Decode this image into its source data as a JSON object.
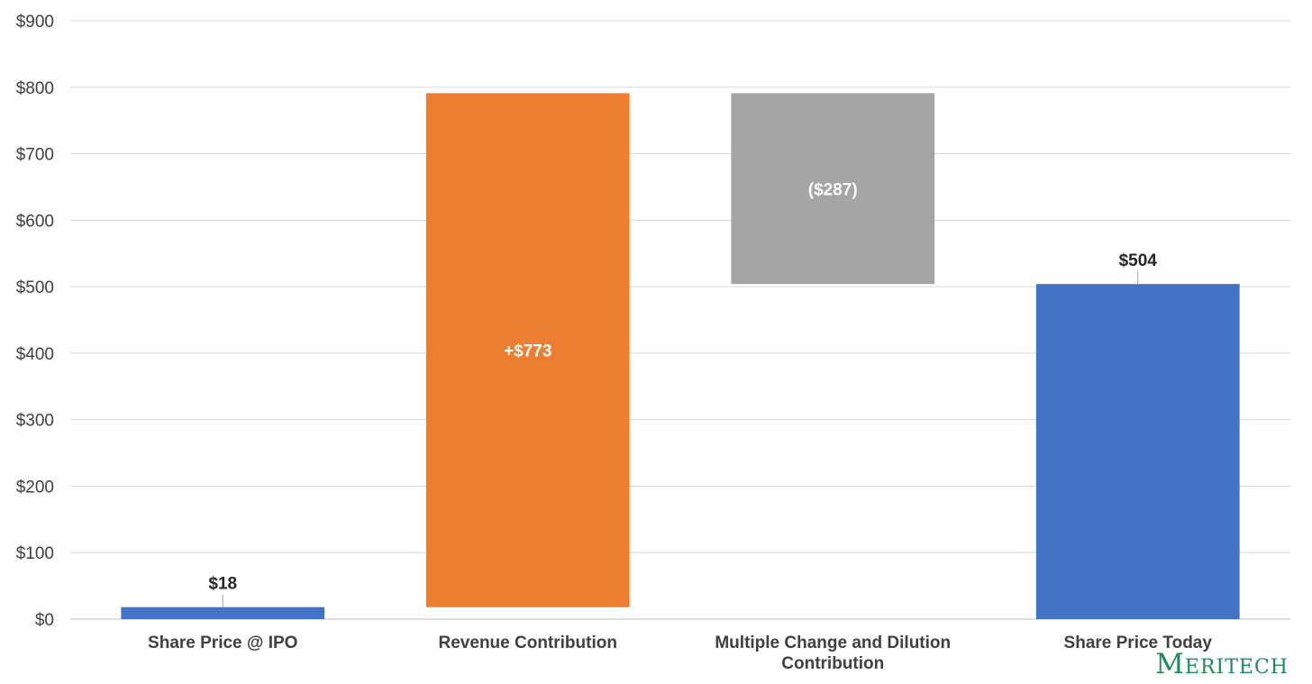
{
  "brand": {
    "logo_text": "Meritech",
    "color": "#1f8a5b"
  },
  "chart_data": {
    "type": "bar",
    "subtype": "waterfall",
    "title": "",
    "xlabel": "",
    "ylabel": "",
    "ylim": [
      0,
      900
    ],
    "yticks": [
      0,
      100,
      200,
      300,
      400,
      500,
      600,
      700,
      800,
      900
    ],
    "ytick_labels": [
      "$0",
      "$100",
      "$200",
      "$300",
      "$400",
      "$500",
      "$600",
      "$700",
      "$800",
      "$900"
    ],
    "grid": true,
    "legend": "none",
    "categories": [
      "Share Price @ IPO",
      "Revenue Contribution",
      "Multiple Change and Dilution Contribution",
      "Share Price Today"
    ],
    "category_lines": [
      [
        "Share Price @ IPO"
      ],
      [
        "Revenue Contribution"
      ],
      [
        "Multiple Change and Dilution",
        "Contribution"
      ],
      [
        "Share Price Today"
      ]
    ],
    "bars": [
      {
        "base": 0,
        "top": 18,
        "label": "$18",
        "label_position": "above",
        "color": "#4472c4",
        "label_color": "#262626"
      },
      {
        "base": 18,
        "top": 791,
        "label": "+$773",
        "label_position": "inside",
        "color": "#ed7d31",
        "label_color": "#ffffff"
      },
      {
        "base": 504,
        "top": 791,
        "label": "($287)",
        "label_position": "inside",
        "color": "#a5a5a5",
        "label_color": "#ffffff"
      },
      {
        "base": 0,
        "top": 504,
        "label": "$504",
        "label_position": "above",
        "color": "#4472c4",
        "label_color": "#262626"
      }
    ]
  }
}
